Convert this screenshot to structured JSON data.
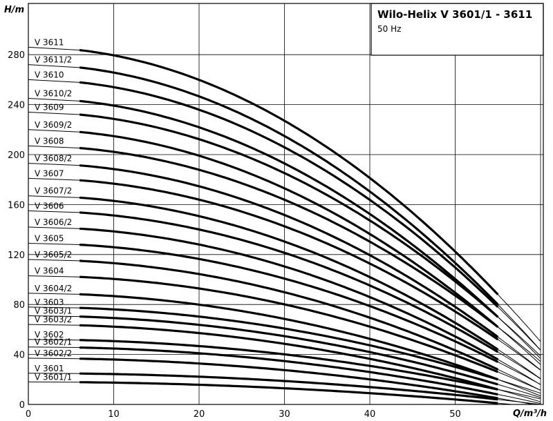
{
  "chart_data": {
    "type": "line",
    "title": "Wilo-Helix V 3601/1 - 3611",
    "subtitle": "50 Hz",
    "xlabel": "Q/m³/h",
    "ylabel": "H/m",
    "xlim": [
      0,
      60
    ],
    "ylim": [
      0,
      300
    ],
    "xticks": [
      0,
      10,
      20,
      30,
      40,
      50
    ],
    "yticks": [
      0,
      40,
      80,
      120,
      160,
      200,
      240,
      280
    ],
    "grid": true,
    "series": [
      {
        "name": "V 3611",
        "h0": 286,
        "h55": 88
      },
      {
        "name": "V 3611/2",
        "h0": 272,
        "h55": 80
      },
      {
        "name": "V 3610",
        "h0": 260,
        "h55": 78
      },
      {
        "name": "V 3610/2",
        "h0": 245,
        "h55": 70
      },
      {
        "name": "V 3609",
        "h0": 234,
        "h55": 70
      },
      {
        "name": "V 3609/2",
        "h0": 220,
        "h55": 62
      },
      {
        "name": "V 3608",
        "h0": 207,
        "h55": 62
      },
      {
        "name": "V 3608/2",
        "h0": 193,
        "h55": 54
      },
      {
        "name": "V 3607",
        "h0": 181,
        "h55": 52
      },
      {
        "name": "V 3607/2",
        "h0": 167,
        "h55": 44
      },
      {
        "name": "V 3606",
        "h0": 155,
        "h55": 42
      },
      {
        "name": "V 3606/2",
        "h0": 142,
        "h55": 36
      },
      {
        "name": "V 3605",
        "h0": 129,
        "h55": 34
      },
      {
        "name": "V 3605/2",
        "h0": 116,
        "h55": 28
      },
      {
        "name": "V 3604",
        "h0": 103,
        "h55": 26
      },
      {
        "name": "V 3604/2",
        "h0": 89,
        "h55": 20
      },
      {
        "name": "V 3603",
        "h0": 78,
        "h55": 20
      },
      {
        "name": "V 3603/1",
        "h0": 71,
        "h55": 16
      },
      {
        "name": "V 3603/2",
        "h0": 64,
        "h55": 12
      },
      {
        "name": "V 3602",
        "h0": 52,
        "h55": 12
      },
      {
        "name": "V 3602/1",
        "h0": 46,
        "h55": 8
      },
      {
        "name": "V 3602/2",
        "h0": 37,
        "h55": 5
      },
      {
        "name": "V 3601",
        "h0": 25,
        "h55": 4
      },
      {
        "name": "V 3601/1",
        "h0": 18,
        "h55": 1
      }
    ]
  }
}
